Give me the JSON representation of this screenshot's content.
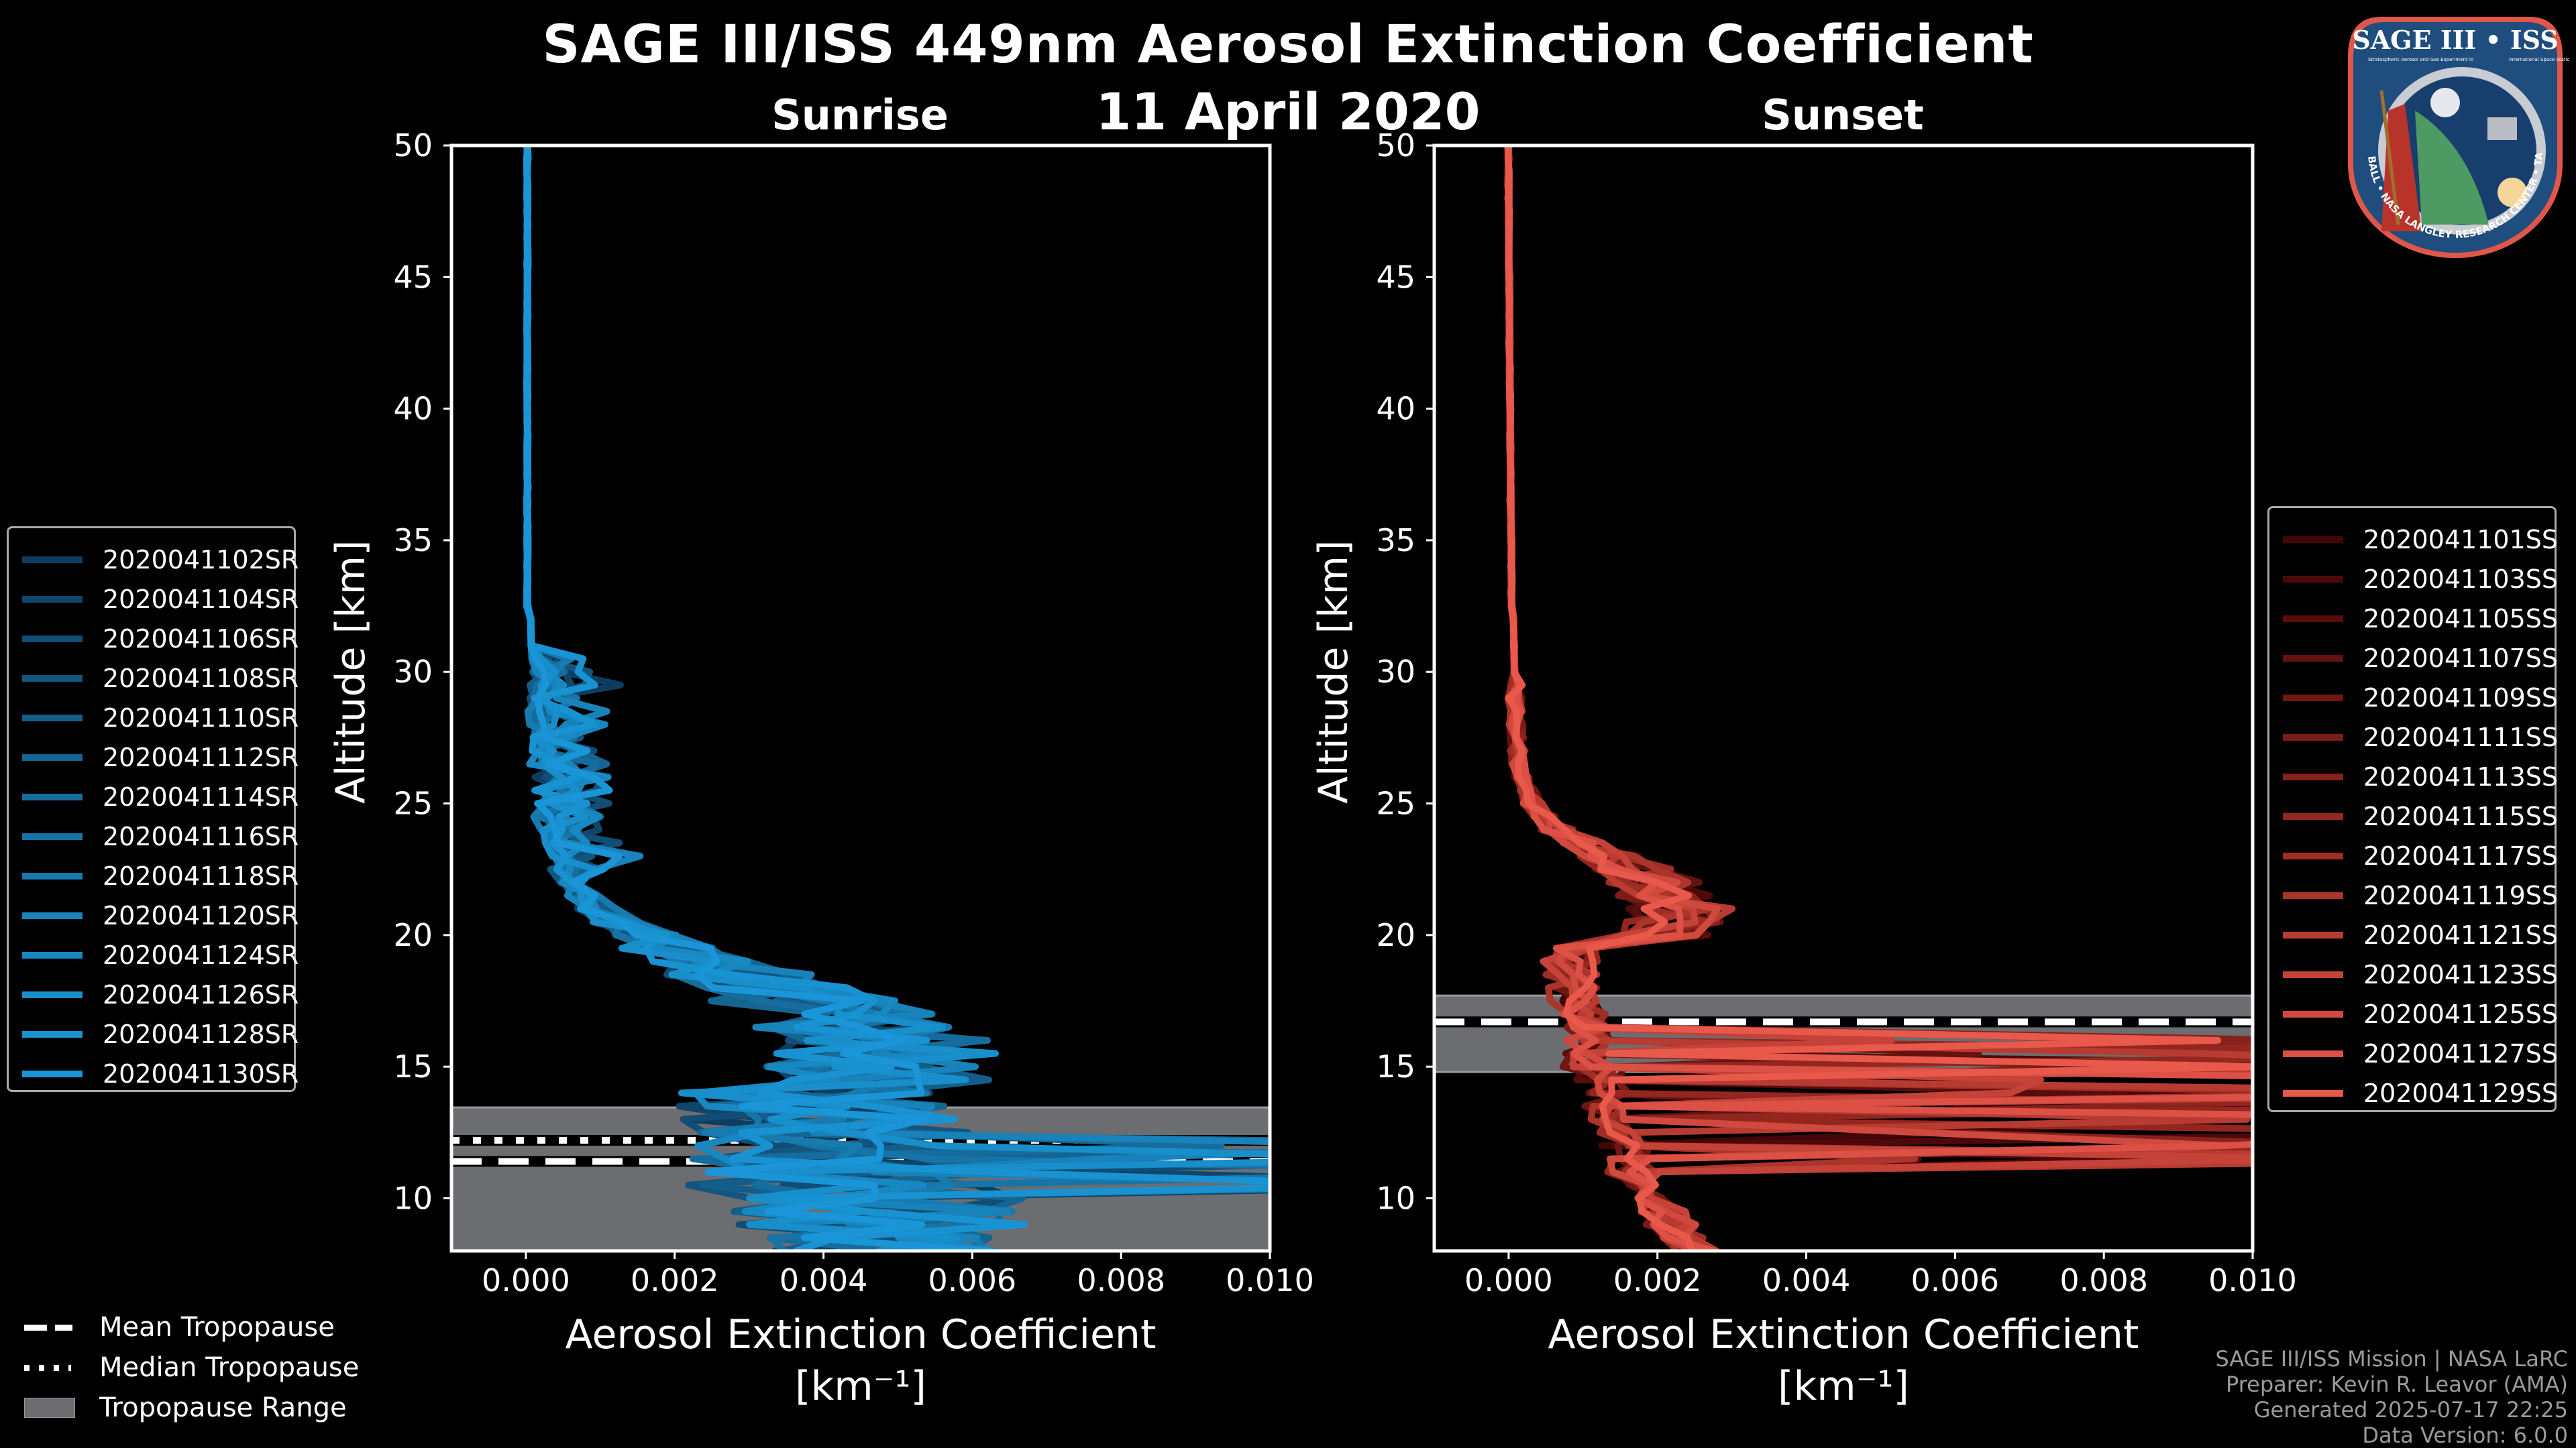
{
  "title": "SAGE III/ISS 449nm Aerosol Extinction Coefficient",
  "date": "11 April 2020",
  "logo": {
    "top_text": "SAGE III • ISS",
    "subtitle_left": "Stratospheric Aerosol and Gas Experiment III",
    "subtitle_right": "International Space Station",
    "ring_text": "BALL • NASA LANGLEY RESEARCH CENTER • TAS-I • ESA"
  },
  "tropopause_legend": [
    {
      "label": "Mean Tropopause",
      "style": "dashed"
    },
    {
      "label": "Median Tropopause",
      "style": "dotted"
    },
    {
      "label": "Tropopause Range",
      "style": "fill"
    }
  ],
  "footer": [
    "SAGE III/ISS Mission | NASA LaRC",
    "Preparer: Kevin R. Leavor (AMA)",
    "Generated 2025-07-17 22:25",
    "Data Version: 6.0.0"
  ],
  "chart_data": [
    {
      "type": "line",
      "title": "Sunrise",
      "xlabel": "Aerosol Extinction Coefficient",
      "xlabel_units": "[km⁻¹]",
      "ylabel": "Altitude [km]",
      "xlim": [
        -0.001,
        0.01
      ],
      "ylim": [
        8,
        50
      ],
      "xticks": [
        "0.000",
        "0.002",
        "0.004",
        "0.006",
        "0.008",
        "0.010"
      ],
      "xtick_values": [
        0,
        0.002,
        0.004,
        0.006,
        0.008,
        0.01
      ],
      "yticks": [
        10,
        15,
        20,
        25,
        30,
        35,
        40,
        45,
        50
      ],
      "legend_position": "left-outside",
      "tropopause": {
        "mean": 11.4,
        "median": 12.2,
        "range": [
          8.0,
          13.45
        ]
      },
      "color_start": "#0a3a5c",
      "color_end": "#1a90d6",
      "series": [
        {
          "name": "2020041102SR",
          "color": "#0d3d60",
          "seed": 2
        },
        {
          "name": "2020041104SR",
          "color": "#0f4569",
          "seed": 4
        },
        {
          "name": "2020041106SR",
          "color": "#114d74",
          "seed": 6
        },
        {
          "name": "2020041108SR",
          "color": "#13557f",
          "seed": 8
        },
        {
          "name": "2020041110SR",
          "color": "#145d89",
          "seed": 10
        },
        {
          "name": "2020041112SR",
          "color": "#156593",
          "seed": 12
        },
        {
          "name": "2020041114SR",
          "color": "#166d9d",
          "seed": 14
        },
        {
          "name": "2020041116SR",
          "color": "#1774a7",
          "seed": 16
        },
        {
          "name": "2020041118SR",
          "color": "#177bb0",
          "seed": 18
        },
        {
          "name": "2020041120SR",
          "color": "#1882ba",
          "seed": 20
        },
        {
          "name": "2020041124SR",
          "color": "#1888c3",
          "seed": 24
        },
        {
          "name": "2020041126SR",
          "color": "#188ecb",
          "seed": 26
        },
        {
          "name": "2020041128SR",
          "color": "#1992d2",
          "seed": 28
        },
        {
          "name": "2020041130SR",
          "color": "#1a96d8",
          "seed": 30
        }
      ],
      "profile_shape": {
        "background": 3e-05,
        "layer_peak_alt": 15.5,
        "layer_peak": 0.0045,
        "layer_width": 3.2,
        "upper_bump_alt": 27,
        "upper_bump": 0.0006
      }
    },
    {
      "type": "line",
      "title": "Sunset",
      "xlabel": "Aerosol Extinction Coefficient",
      "xlabel_units": "[km⁻¹]",
      "ylabel": "Altitude [km]",
      "xlim": [
        -0.001,
        0.01
      ],
      "ylim": [
        8,
        50
      ],
      "xticks": [
        "0.000",
        "0.002",
        "0.004",
        "0.006",
        "0.008",
        "0.010"
      ],
      "xtick_values": [
        0,
        0.002,
        0.004,
        0.006,
        0.008,
        0.01
      ],
      "yticks": [
        10,
        15,
        20,
        25,
        30,
        35,
        40,
        45,
        50
      ],
      "legend_position": "right-outside",
      "tropopause": {
        "mean": 16.7,
        "median": 16.7,
        "range": [
          14.8,
          17.7
        ]
      },
      "color_start": "#3e0505",
      "color_end": "#e8584b",
      "series": [
        {
          "name": "2020041101SS",
          "color": "#420606",
          "seed": 1
        },
        {
          "name": "2020041103SS",
          "color": "#4d0909",
          "seed": 3
        },
        {
          "name": "2020041105SS",
          "color": "#580d0c",
          "seed": 5
        },
        {
          "name": "2020041107SS",
          "color": "#64120f",
          "seed": 7
        },
        {
          "name": "2020041109SS",
          "color": "#6f1713",
          "seed": 9
        },
        {
          "name": "2020041111SS",
          "color": "#7b1c17",
          "seed": 11
        },
        {
          "name": "2020041113SS",
          "color": "#87211b",
          "seed": 13
        },
        {
          "name": "2020041115SS",
          "color": "#932720",
          "seed": 15
        },
        {
          "name": "2020041117SS",
          "color": "#9f2d25",
          "seed": 17
        },
        {
          "name": "2020041119SS",
          "color": "#ab342b",
          "seed": 19
        },
        {
          "name": "2020041121SS",
          "color": "#b83b31",
          "seed": 21
        },
        {
          "name": "2020041123SS",
          "color": "#c44237",
          "seed": 23
        },
        {
          "name": "2020041125SS",
          "color": "#d0493e",
          "seed": 25
        },
        {
          "name": "2020041127SS",
          "color": "#dc5045",
          "seed": 27
        },
        {
          "name": "2020041129SS",
          "color": "#e8584b",
          "seed": 29
        }
      ],
      "profile_shape": {
        "background": 3e-05,
        "layer_peak_alt": 21,
        "layer_peak": 0.0021,
        "layer_width": 2.0,
        "upper_bump_alt": 0,
        "upper_bump": 0
      }
    }
  ]
}
